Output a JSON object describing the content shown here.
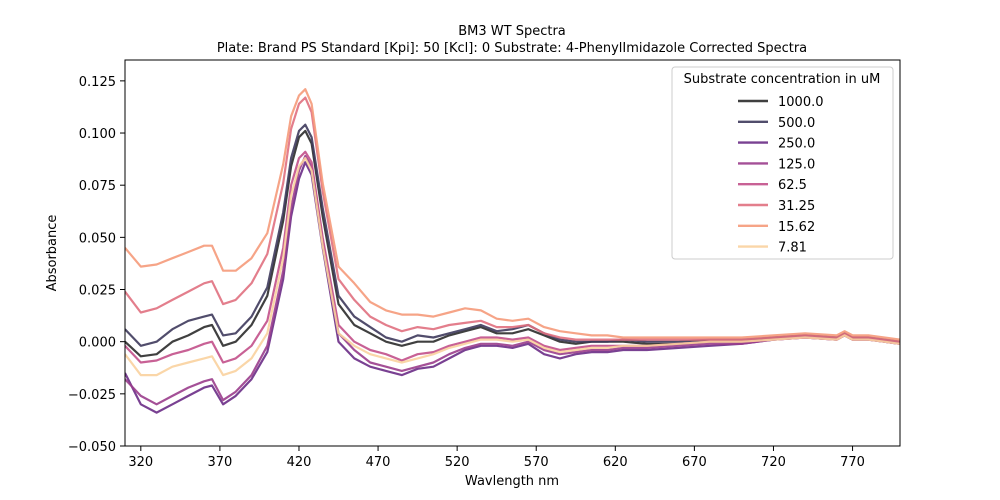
{
  "chart_data": {
    "type": "line",
    "title": "BM3 WT Spectra",
    "subtitle": "Plate: Brand PS Standard  [Kpi]: 50  [Kcl]: 0  Substrate: 4-PhenylImidazole Corrected Spectra",
    "xlabel": "Wavlength nm",
    "ylabel": "Absorbance",
    "xlim": [
      310,
      800
    ],
    "ylim": [
      -0.05,
      0.135
    ],
    "xticks": [
      320,
      370,
      420,
      470,
      520,
      570,
      620,
      670,
      720,
      770
    ],
    "yticks": [
      -0.05,
      -0.025,
      0.0,
      0.025,
      0.05,
      0.075,
      0.1,
      0.125
    ],
    "ytick_labels": [
      "−0.050",
      "−0.025",
      "0.000",
      "0.025",
      "0.050",
      "0.075",
      "0.100",
      "0.125"
    ],
    "grid": false,
    "legend": {
      "title": "Substrate concentration in uM",
      "position": "top-right"
    },
    "x": [
      310,
      320,
      330,
      340,
      350,
      360,
      365,
      372,
      380,
      390,
      400,
      410,
      415,
      420,
      424,
      428,
      435,
      445,
      455,
      465,
      475,
      485,
      495,
      505,
      515,
      525,
      535,
      545,
      555,
      565,
      575,
      585,
      595,
      605,
      615,
      625,
      640,
      660,
      680,
      700,
      720,
      740,
      760,
      765,
      770,
      780,
      790,
      800
    ],
    "series": [
      {
        "name": "1000.0",
        "color": "#2b2b2b",
        "values": [
          0.0,
          -0.007,
          -0.006,
          0.0,
          0.003,
          0.007,
          0.008,
          -0.002,
          0.0,
          0.008,
          0.022,
          0.058,
          0.084,
          0.098,
          0.101,
          0.095,
          0.06,
          0.018,
          0.008,
          0.004,
          0.0,
          -0.002,
          0.0,
          0.0,
          0.003,
          0.005,
          0.007,
          0.004,
          0.004,
          0.006,
          0.003,
          0.0,
          -0.001,
          0.0,
          0.0,
          0.0,
          -0.001,
          -0.001,
          0.0,
          0.0,
          0.002,
          0.003,
          0.002,
          0.004,
          0.002,
          0.002,
          0.001,
          0.0
        ]
      },
      {
        "name": "500.0",
        "color": "#3e3a5c",
        "values": [
          0.006,
          -0.002,
          0.0,
          0.006,
          0.01,
          0.012,
          0.013,
          0.003,
          0.004,
          0.012,
          0.026,
          0.062,
          0.088,
          0.101,
          0.104,
          0.098,
          0.064,
          0.022,
          0.012,
          0.007,
          0.002,
          0.0,
          0.003,
          0.002,
          0.004,
          0.006,
          0.008,
          0.005,
          0.006,
          0.008,
          0.004,
          0.001,
          0.0,
          0.0,
          0.0,
          0.001,
          0.0,
          0.0,
          0.001,
          0.001,
          0.002,
          0.003,
          0.002,
          0.004,
          0.002,
          0.002,
          0.001,
          0.0
        ]
      },
      {
        "name": "250.0",
        "color": "#6a2c86",
        "values": [
          -0.015,
          -0.03,
          -0.034,
          -0.03,
          -0.026,
          -0.022,
          -0.021,
          -0.03,
          -0.026,
          -0.018,
          -0.005,
          0.03,
          0.06,
          0.078,
          0.086,
          0.08,
          0.045,
          0.0,
          -0.008,
          -0.012,
          -0.014,
          -0.016,
          -0.013,
          -0.012,
          -0.008,
          -0.004,
          -0.002,
          -0.002,
          -0.003,
          -0.001,
          -0.006,
          -0.008,
          -0.006,
          -0.005,
          -0.005,
          -0.004,
          -0.004,
          -0.003,
          -0.002,
          -0.001,
          0.001,
          0.002,
          0.001,
          0.003,
          0.001,
          0.001,
          0.0,
          -0.001
        ]
      },
      {
        "name": "125.0",
        "color": "#9a3d8c",
        "values": [
          -0.018,
          -0.026,
          -0.03,
          -0.026,
          -0.022,
          -0.019,
          -0.018,
          -0.028,
          -0.024,
          -0.016,
          -0.002,
          0.034,
          0.064,
          0.082,
          0.089,
          0.084,
          0.048,
          0.004,
          -0.004,
          -0.01,
          -0.012,
          -0.014,
          -0.012,
          -0.01,
          -0.006,
          -0.003,
          -0.001,
          -0.001,
          -0.002,
          0.0,
          -0.004,
          -0.006,
          -0.005,
          -0.004,
          -0.004,
          -0.003,
          -0.003,
          -0.002,
          -0.001,
          -0.001,
          0.001,
          0.002,
          0.001,
          0.003,
          0.001,
          0.001,
          0.0,
          -0.001
        ]
      },
      {
        "name": "62.5",
        "color": "#c2508a",
        "values": [
          -0.002,
          -0.01,
          -0.009,
          -0.006,
          -0.004,
          -0.001,
          0.0,
          -0.01,
          -0.008,
          -0.002,
          0.01,
          0.045,
          0.075,
          0.088,
          0.091,
          0.086,
          0.05,
          0.008,
          0.0,
          -0.004,
          -0.006,
          -0.009,
          -0.006,
          -0.005,
          -0.002,
          0.0,
          0.002,
          0.002,
          0.001,
          0.002,
          -0.002,
          -0.004,
          -0.003,
          -0.002,
          -0.002,
          -0.002,
          -0.002,
          -0.001,
          0.0,
          0.0,
          0.001,
          0.002,
          0.001,
          0.003,
          0.001,
          0.001,
          0.0,
          -0.001
        ]
      },
      {
        "name": "31.25",
        "color": "#e0707f",
        "values": [
          0.024,
          0.014,
          0.016,
          0.02,
          0.024,
          0.028,
          0.029,
          0.018,
          0.02,
          0.028,
          0.042,
          0.076,
          0.102,
          0.114,
          0.117,
          0.11,
          0.072,
          0.03,
          0.02,
          0.012,
          0.008,
          0.005,
          0.007,
          0.006,
          0.008,
          0.009,
          0.01,
          0.007,
          0.007,
          0.008,
          0.004,
          0.002,
          0.001,
          0.001,
          0.001,
          0.001,
          0.001,
          0.001,
          0.001,
          0.001,
          0.002,
          0.003,
          0.002,
          0.004,
          0.002,
          0.002,
          0.001,
          0.0
        ]
      },
      {
        "name": "15.62",
        "color": "#f59a7a",
        "values": [
          0.045,
          0.036,
          0.037,
          0.04,
          0.043,
          0.046,
          0.046,
          0.034,
          0.034,
          0.04,
          0.052,
          0.085,
          0.108,
          0.118,
          0.121,
          0.114,
          0.076,
          0.036,
          0.028,
          0.019,
          0.015,
          0.013,
          0.013,
          0.012,
          0.014,
          0.016,
          0.015,
          0.011,
          0.01,
          0.011,
          0.007,
          0.005,
          0.004,
          0.003,
          0.003,
          0.002,
          0.002,
          0.002,
          0.002,
          0.002,
          0.003,
          0.004,
          0.003,
          0.005,
          0.003,
          0.003,
          0.002,
          0.001
        ]
      },
      {
        "name": "7.81",
        "color": "#f9d19e",
        "values": [
          -0.006,
          -0.016,
          -0.016,
          -0.012,
          -0.01,
          -0.008,
          -0.007,
          -0.016,
          -0.014,
          -0.008,
          0.004,
          0.04,
          0.07,
          0.084,
          0.088,
          0.082,
          0.046,
          0.004,
          -0.002,
          -0.006,
          -0.008,
          -0.01,
          -0.008,
          -0.006,
          -0.003,
          -0.001,
          0.001,
          0.001,
          0.0,
          0.001,
          -0.003,
          -0.005,
          -0.004,
          -0.003,
          -0.003,
          -0.002,
          -0.002,
          -0.001,
          0.0,
          0.0,
          0.001,
          0.002,
          0.001,
          0.003,
          0.001,
          0.001,
          0.0,
          -0.001
        ]
      }
    ]
  }
}
